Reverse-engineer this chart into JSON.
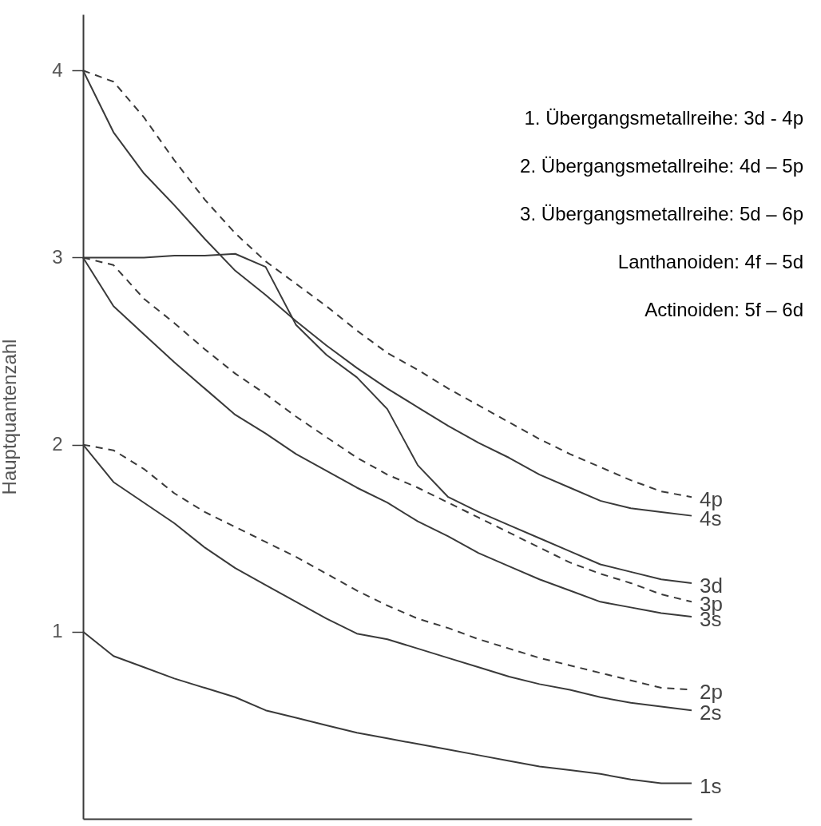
{
  "chart_data": {
    "type": "line",
    "ylabel": "Hauptquantenzahl",
    "ylim": [
      0,
      4.3
    ],
    "yticks": [
      1,
      2,
      3,
      4
    ],
    "grid": false,
    "marker": "none",
    "categories": [
      null,
      null,
      null,
      null,
      null,
      null,
      null,
      null,
      null,
      null,
      null,
      null,
      null,
      null,
      null,
      null,
      null,
      null,
      null,
      null,
      null
    ],
    "annotations": [
      "1. Übergangsmetallreihe: 3d - 4p",
      "2. Übergangsmetallreihe: 4d – 5p",
      "3. Übergangsmetallreihe: 5d – 6p",
      "Lanthanoiden: 4f – 5d",
      "Actinoiden: 5f – 6d"
    ],
    "series": [
      {
        "name": "4p",
        "color": "#3a3a3a",
        "line_style": "dashed",
        "values": [
          4.0,
          3.94,
          3.75,
          3.52,
          3.31,
          3.13,
          2.98,
          2.86,
          2.74,
          2.61,
          2.49,
          2.4,
          2.3,
          2.21,
          2.12,
          2.03,
          1.95,
          1.88,
          1.81,
          1.75,
          1.72
        ]
      },
      {
        "name": "4s",
        "color": "#3a3a3a",
        "line_style": "solid",
        "values": [
          4.0,
          3.67,
          3.45,
          3.28,
          3.1,
          2.93,
          2.8,
          2.66,
          2.53,
          2.41,
          2.3,
          2.2,
          2.1,
          2.01,
          1.93,
          1.84,
          1.77,
          1.7,
          1.66,
          1.64,
          1.62
        ]
      },
      {
        "name": "3d",
        "color": "#3a3a3a",
        "line_style": "solid",
        "values": [
          3.0,
          3.0,
          3.0,
          3.01,
          3.01,
          3.02,
          2.95,
          2.64,
          2.48,
          2.36,
          2.19,
          1.89,
          1.72,
          1.64,
          1.57,
          1.5,
          1.43,
          1.36,
          1.32,
          1.28,
          1.26
        ]
      },
      {
        "name": "3p",
        "color": "#3a3a3a",
        "line_style": "dashed",
        "values": [
          3.0,
          2.96,
          2.78,
          2.65,
          2.51,
          2.38,
          2.27,
          2.15,
          2.04,
          1.93,
          1.84,
          1.77,
          1.69,
          1.61,
          1.53,
          1.45,
          1.37,
          1.31,
          1.26,
          1.2,
          1.16
        ]
      },
      {
        "name": "3s",
        "color": "#3a3a3a",
        "line_style": "solid",
        "values": [
          3.0,
          2.74,
          2.59,
          2.44,
          2.3,
          2.16,
          2.06,
          1.95,
          1.86,
          1.77,
          1.69,
          1.59,
          1.51,
          1.42,
          1.35,
          1.28,
          1.22,
          1.16,
          1.13,
          1.1,
          1.08
        ]
      },
      {
        "name": "2p",
        "color": "#3a3a3a",
        "line_style": "dashed",
        "values": [
          2.0,
          1.97,
          1.87,
          1.74,
          1.64,
          1.56,
          1.48,
          1.4,
          1.31,
          1.22,
          1.14,
          1.07,
          1.02,
          0.96,
          0.91,
          0.86,
          0.82,
          0.78,
          0.74,
          0.7,
          0.69
        ]
      },
      {
        "name": "2s",
        "color": "#3a3a3a",
        "line_style": "solid",
        "values": [
          2.0,
          1.8,
          1.69,
          1.58,
          1.45,
          1.34,
          1.25,
          1.16,
          1.07,
          0.99,
          0.96,
          0.91,
          0.86,
          0.81,
          0.76,
          0.72,
          0.69,
          0.65,
          0.62,
          0.6,
          0.58
        ]
      },
      {
        "name": "1s",
        "color": "#3a3a3a",
        "line_style": "solid",
        "values": [
          1.0,
          0.87,
          0.81,
          0.75,
          0.7,
          0.65,
          0.58,
          0.54,
          0.5,
          0.46,
          0.43,
          0.4,
          0.37,
          0.34,
          0.31,
          0.28,
          0.26,
          0.24,
          0.21,
          0.19,
          0.19
        ]
      }
    ]
  }
}
